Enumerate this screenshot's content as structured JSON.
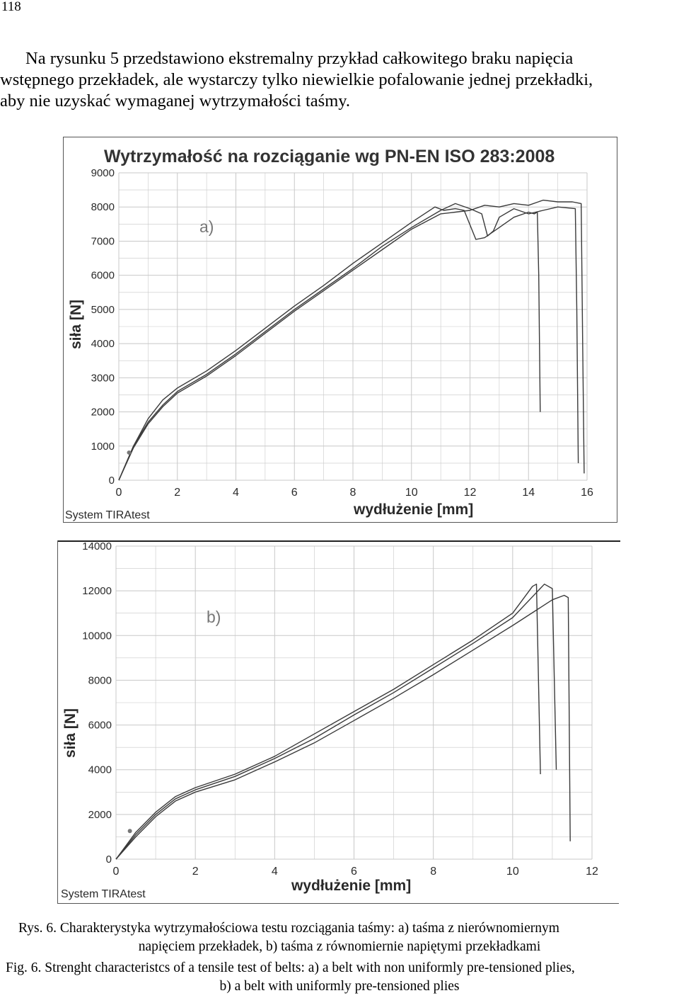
{
  "page_number": "118",
  "intro": {
    "line1": "Na rysunku 5 przedstawiono ekstremalny przykład całkowitego braku napięcia",
    "line2": "wstępnego przekładek, ale wystarczy tylko niewielkie pofalowanie jednej przekładki,",
    "line3": "aby nie uzyskać wymaganej wytrzymałości taśmy."
  },
  "chart_data": [
    {
      "type": "line",
      "panel_label": "a)",
      "title": "Wytrzymałość na rozciąganie wg PN-EN ISO 283:2008",
      "xlabel": "wydłużenie  [mm]",
      "ylabel": "siła  [N]",
      "xlim": [
        0,
        16
      ],
      "ylim": [
        0,
        9000
      ],
      "x_ticks": [
        "0",
        "2",
        "4",
        "6",
        "8",
        "10",
        "12",
        "14",
        "16"
      ],
      "y_ticks": [
        "0",
        "1000",
        "2000",
        "3000",
        "4000",
        "5000",
        "6000",
        "7000",
        "8000",
        "9000"
      ],
      "grid": true,
      "footer": "System TIRAtest",
      "series": [
        {
          "x": [
            0,
            0.5,
            1,
            1.5,
            2,
            3,
            4,
            5,
            6,
            7,
            8,
            9,
            10,
            10.8,
            11.1,
            11.5,
            11.8,
            12.2,
            12.5,
            13,
            13.5,
            14,
            14.2,
            14.3,
            14.35,
            14.4
          ],
          "y": [
            0,
            1000,
            1800,
            2350,
            2700,
            3200,
            3800,
            4450,
            5100,
            5700,
            6350,
            6950,
            7550,
            8000,
            7900,
            7950,
            7900,
            7050,
            7100,
            7400,
            7700,
            7850,
            7800,
            7850,
            6000,
            2000
          ]
        },
        {
          "x": [
            0,
            0.5,
            1,
            1.5,
            2,
            3,
            4,
            5,
            6,
            7,
            8,
            9,
            10,
            11,
            11.5,
            12,
            12.4,
            12.6,
            12.8,
            13,
            13.5,
            14,
            14.5,
            15,
            15.6,
            15.65,
            15.7
          ],
          "y": [
            0,
            1000,
            1700,
            2200,
            2600,
            3100,
            3700,
            4350,
            5000,
            5600,
            6200,
            6850,
            7400,
            7900,
            8100,
            7950,
            7800,
            7150,
            7300,
            7700,
            7950,
            7800,
            7900,
            8000,
            7950,
            5000,
            500
          ]
        },
        {
          "x": [
            0,
            0.5,
            1,
            1.5,
            2,
            3,
            4,
            5,
            6,
            7,
            8,
            9,
            10,
            11,
            11.5,
            12,
            12.5,
            13,
            13.5,
            14,
            14.5,
            15,
            15.5,
            15.8,
            15.85,
            15.9
          ],
          "y": [
            0,
            950,
            1650,
            2150,
            2550,
            3050,
            3650,
            4300,
            4950,
            5550,
            6150,
            6750,
            7350,
            7800,
            7850,
            7900,
            8050,
            8000,
            8100,
            8050,
            8200,
            8150,
            8150,
            8100,
            4000,
            200
          ]
        }
      ]
    },
    {
      "type": "line",
      "panel_label": "b)",
      "title": "",
      "xlabel": "wydłużenie  [mm]",
      "ylabel": "siła  [N]",
      "xlim": [
        0,
        12
      ],
      "ylim": [
        0,
        14000
      ],
      "x_ticks": [
        "0",
        "2",
        "4",
        "6",
        "8",
        "10",
        "12"
      ],
      "y_ticks": [
        "0",
        "2000",
        "4000",
        "6000",
        "8000",
        "10000",
        "12000",
        "14000"
      ],
      "grid": true,
      "footer": "System TIRAtest",
      "series": [
        {
          "x": [
            0,
            0.5,
            1,
            1.5,
            2,
            3,
            4,
            5,
            6,
            7,
            8,
            9,
            10,
            10.5,
            10.6,
            10.7
          ],
          "y": [
            0,
            1200,
            2100,
            2800,
            3200,
            3800,
            4600,
            5600,
            6600,
            7600,
            8700,
            9800,
            11000,
            12200,
            12300,
            3800
          ]
        },
        {
          "x": [
            0,
            0.5,
            1,
            1.5,
            2,
            3,
            4,
            5,
            6,
            7,
            8,
            9,
            10,
            10.8,
            11,
            11.1
          ],
          "y": [
            0,
            1100,
            2000,
            2700,
            3100,
            3700,
            4500,
            5400,
            6450,
            7450,
            8550,
            9650,
            10800,
            12300,
            12100,
            4000
          ]
        },
        {
          "x": [
            0,
            0.5,
            1,
            1.5,
            2,
            3,
            4,
            5,
            6,
            7,
            8,
            9,
            10,
            11,
            11.3,
            11.4,
            11.45
          ],
          "y": [
            0,
            1000,
            1900,
            2600,
            3000,
            3550,
            4350,
            5200,
            6200,
            7200,
            8250,
            9350,
            10450,
            11600,
            11800,
            11700,
            800
          ]
        }
      ]
    }
  ],
  "caption": {
    "pl_line1": "Rys. 6.  Charakterystyka wytrzymałościowa testu rozciągania taśmy: a) taśma z nierównomiernym",
    "pl_line2": "napięciem przekładek, b) taśma z równomiernie napiętymi przekładkami",
    "en_line1": "Fig. 6. Strenght characteristcs of a tensile test of belts: a) a belt with non uniformly pre-tensioned plies,",
    "en_line2": "b) a belt with uniformly pre-tensioned plies"
  },
  "colors": {
    "curve": "#3a3a3a",
    "grid": "#c8c8c8",
    "axis_text": "#2a2a2a",
    "frame": "#555555"
  }
}
